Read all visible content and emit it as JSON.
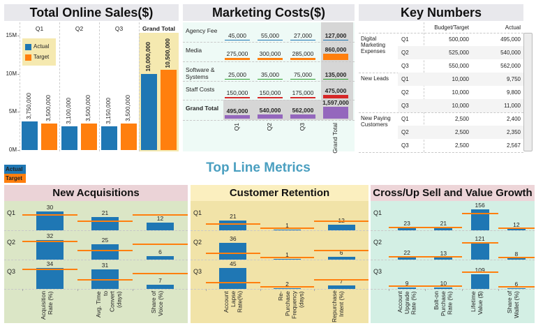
{
  "colors": {
    "actual": "#1f77b4",
    "target": "#ff7f0e"
  },
  "sales": {
    "title": "Total Online Sales($)",
    "ylim": [
      0,
      15000000
    ],
    "y_ticks": [
      {
        "label": "0M",
        "value": 0
      },
      {
        "label": "5M",
        "value": 5000000
      },
      {
        "label": "10M",
        "value": 10000000
      },
      {
        "label": "15M",
        "value": 15000000
      }
    ],
    "legend": [
      "Actual",
      "Target"
    ],
    "columns": [
      {
        "label": "Q1",
        "actual": 3750000,
        "target": 3500000,
        "actual_label": "3,750,000",
        "target_label": "3,500,000"
      },
      {
        "label": "Q2",
        "actual": 3100000,
        "target": 3500000,
        "actual_label": "3,100,000",
        "target_label": "3,500,000"
      },
      {
        "label": "Q3",
        "actual": 3150000,
        "target": 3500000,
        "actual_label": "3,150,000",
        "target_label": "3,500,000"
      },
      {
        "label": "Grand Total",
        "actual": 10000000,
        "target": 10500000,
        "actual_label": "10,000,000",
        "target_label": "10,500,000"
      }
    ]
  },
  "marketing": {
    "title": "Marketing Costs($)",
    "columns": [
      "Q1",
      "Q2",
      "Q3",
      "Grand Total"
    ],
    "max": 1597000,
    "rows": [
      {
        "label": "Agency Fee",
        "color": "#1f77b4",
        "values": [
          45000,
          55000,
          27000,
          127000
        ],
        "labels": [
          "45,000",
          "55,000",
          "27,000",
          "127,000"
        ]
      },
      {
        "label": "Media",
        "color": "#ff7f0e",
        "values": [
          275000,
          300000,
          285000,
          860000
        ],
        "labels": [
          "275,000",
          "300,000",
          "285,000",
          "860,000"
        ]
      },
      {
        "label": "Software & Systems",
        "color": "#2ca02c",
        "values": [
          25000,
          35000,
          75000,
          135000
        ],
        "labels": [
          "25,000",
          "35,000",
          "75,000",
          "135,000"
        ]
      },
      {
        "label": "Staff Costs",
        "color": "#d62728",
        "values": [
          150000,
          150000,
          175000,
          475000
        ],
        "labels": [
          "150,000",
          "150,000",
          "175,000",
          "475,000"
        ]
      },
      {
        "label": "Grand Total",
        "color": "#9467bd",
        "values": [
          495000,
          540000,
          562000,
          1597000
        ],
        "labels": [
          "495,000",
          "540,000",
          "562,000",
          "1,597,000"
        ]
      }
    ]
  },
  "key_numbers": {
    "title": "Key Numbers",
    "headers": [
      "Budget/Target",
      "Actual"
    ],
    "groups": [
      {
        "label": "Digital Marketing Expenses",
        "rows": [
          [
            "Q1",
            "500,000",
            "495,000"
          ],
          [
            "Q2",
            "525,000",
            "540,000"
          ],
          [
            "Q3",
            "550,000",
            "562,000"
          ]
        ]
      },
      {
        "label": "New Leads",
        "rows": [
          [
            "Q1",
            "10,000",
            "9,750"
          ],
          [
            "Q2",
            "10,000",
            "9,800"
          ],
          [
            "Q3",
            "10,000",
            "11,000"
          ]
        ]
      },
      {
        "label": "New Paying Customers",
        "rows": [
          [
            "Q1",
            "2,500",
            "2,400"
          ],
          [
            "Q2",
            "2,500",
            "2,350"
          ],
          [
            "Q3",
            "2,500",
            "2,567"
          ]
        ]
      }
    ]
  },
  "top_line": {
    "title": "Top Line Metrics",
    "legend": [
      "Actual",
      "Target"
    ]
  },
  "panels": [
    {
      "title": "New Acquisitions",
      "header_bg": "#ebd3d7",
      "body_bg": "#dbe6c6",
      "axis_max": 45,
      "quarters": [
        "Q1",
        "Q2",
        "Q3"
      ],
      "measures": [
        {
          "label": "Acquisition\nRate (%)",
          "actual": [
            30,
            32,
            34
          ],
          "target": [
            25,
            29,
            31
          ]
        },
        {
          "label": "Avg. Time to\nConvert\n(days)",
          "actual": [
            21,
            25,
            31
          ],
          "target": [
            15,
            15,
            15
          ]
        },
        {
          "label": "Share of\nVoice (%)",
          "actual": [
            12,
            6,
            7
          ],
          "target": [
            25,
            25,
            25
          ]
        }
      ]
    },
    {
      "title": "Customer Retention",
      "header_bg": "#fbefbf",
      "body_bg": "#f1e3a8",
      "axis_max": 60,
      "quarters": [
        "Q1",
        "Q2",
        "Q3"
      ],
      "measures": [
        {
          "label": "Account\nLapse\nRate(%)",
          "actual": [
            21,
            36,
            45
          ],
          "target": [
            14,
            14,
            13
          ]
        },
        {
          "label": "Re-Purchase\nFrequency\n(days)",
          "actual": [
            1,
            1,
            2
          ],
          "target": [
            4,
            4,
            4
          ]
        },
        {
          "label": "Repurchase\nIntent (%)",
          "actual": [
            12,
            6,
            7
          ],
          "target": [
            20,
            20,
            20
          ]
        }
      ]
    },
    {
      "title": "Cross/Up Sell and Value Growth",
      "header_bg": "#edd5d8",
      "body_bg": "#d3efe4",
      "axis_max": 205,
      "quarters": [
        "Q1",
        "Q2",
        "Q3"
      ],
      "measures": [
        {
          "label": "Account\nUpgrade\nRate (%)",
          "actual": [
            23,
            22,
            9
          ],
          "target": [
            19,
            19,
            19
          ]
        },
        {
          "label": "Bolt-on\nPurchase\nRate (%)",
          "actual": [
            21,
            13,
            10
          ],
          "target": [
            19,
            19,
            19
          ]
        },
        {
          "label": "Lifetime\nValue ($)",
          "actual": [
            156,
            121,
            109
          ],
          "target": [
            122,
            122,
            122
          ]
        },
        {
          "label": "Share of\nWallet (%)",
          "actual": [
            12,
            8,
            6
          ],
          "target": [
            15,
            15,
            15
          ]
        }
      ]
    }
  ]
}
